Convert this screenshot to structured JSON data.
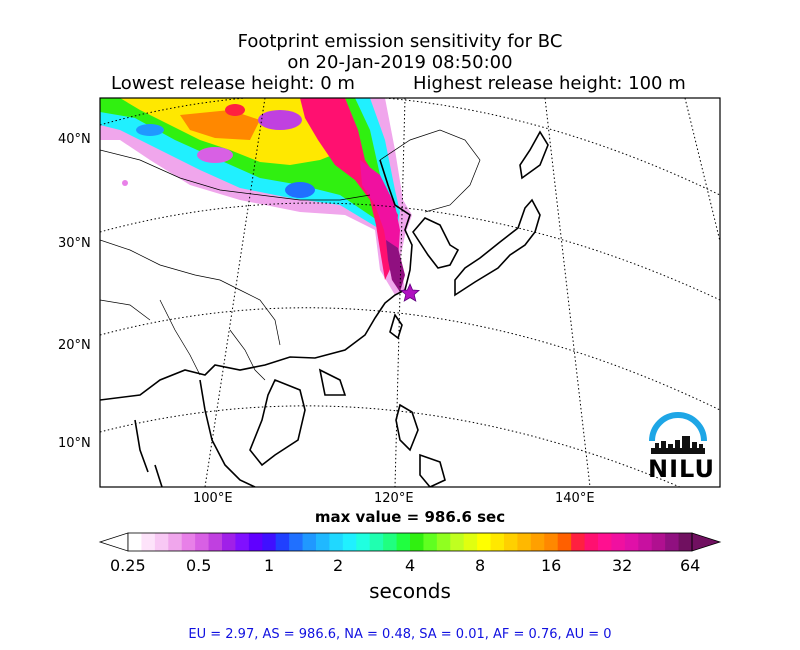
{
  "title": {
    "line1": "Footprint emission sensitivity for BC",
    "line2": "on 20-Jan-2019 08:50:00",
    "lowest": "Lowest release height: 0 m",
    "highest": "Highest release height: 100 m"
  },
  "map": {
    "lat_labels": [
      "40°N",
      "30°N",
      "20°N",
      "10°N"
    ],
    "lon_labels": [
      "100°E",
      "120°E",
      "140°E"
    ],
    "release_marker": "star-marker",
    "max_value": "max value = 986.6 sec"
  },
  "colorbar": {
    "ticks": [
      "0.25",
      "0.5",
      "1",
      "2",
      "4",
      "8",
      "16",
      "32",
      "64"
    ],
    "label": "seconds",
    "colors": [
      "#ffffff",
      "#fde3fa",
      "#f8c8f4",
      "#f0a6ec",
      "#e880e8",
      "#d860e4",
      "#c040e0",
      "#a020e8",
      "#8010ff",
      "#6000ff",
      "#4010ff",
      "#2040ff",
      "#2070ff",
      "#2098ff",
      "#20b8ff",
      "#20d8ff",
      "#20f0ff",
      "#20ffe0",
      "#20ffb0",
      "#20ff80",
      "#20ff40",
      "#30f010",
      "#60ff20",
      "#90ff20",
      "#c0ff20",
      "#e0ff10",
      "#ffff00",
      "#ffe800",
      "#ffd000",
      "#ffb800",
      "#ffa000",
      "#ff8800",
      "#ff6000",
      "#ff2040",
      "#ff1070",
      "#ff1090",
      "#f010a0",
      "#e010a8",
      "#c810a0",
      "#b01090",
      "#901080",
      "#701060"
    ]
  },
  "logo": {
    "text": "NILU",
    "arc_color": "#1ea6e6"
  },
  "footer": "EU = 2.97,  AS = 986.6,  NA = 0.48,  SA = 0.01,  AF = 0.76,  AU = 0"
}
